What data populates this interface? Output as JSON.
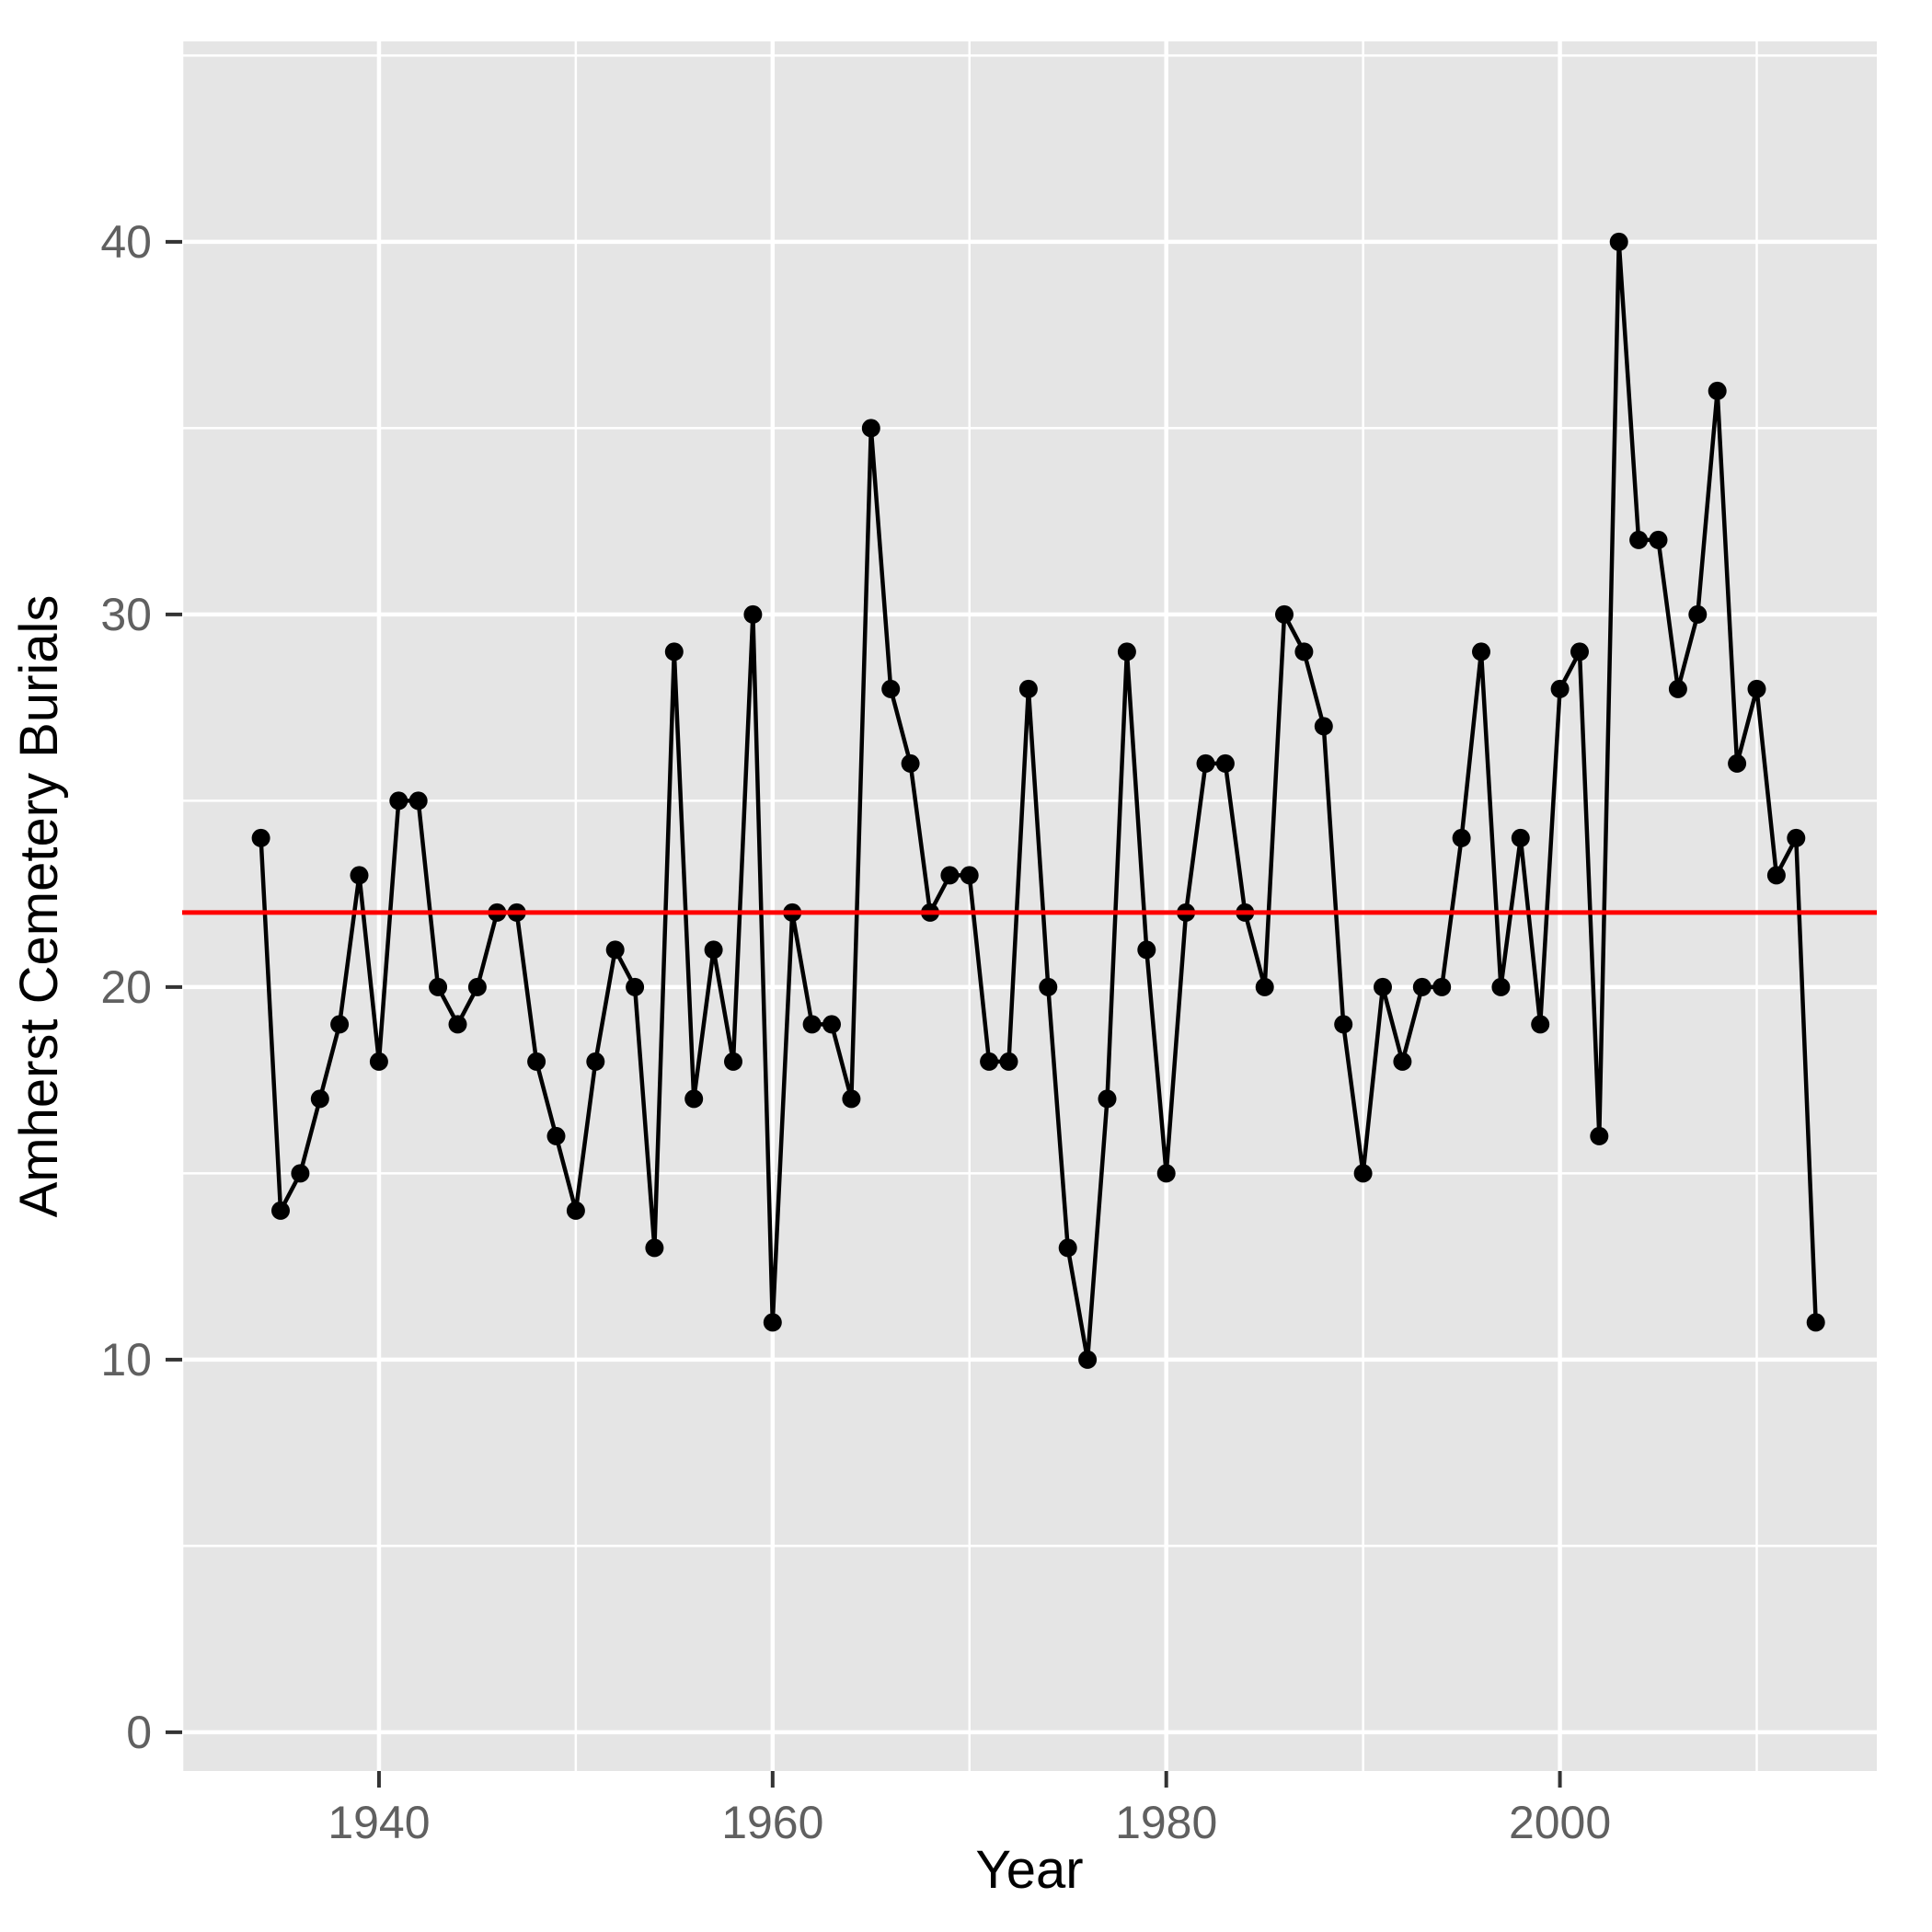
{
  "figure": {
    "kind": "ggplot-scatter-line",
    "background": "#ffffff"
  },
  "chart_data": {
    "type": "line",
    "series_name": "amherst-cemetery-burials",
    "x": [
      1934,
      1935,
      1936,
      1937,
      1938,
      1939,
      1940,
      1941,
      1942,
      1943,
      1944,
      1945,
      1946,
      1947,
      1948,
      1949,
      1950,
      1951,
      1952,
      1953,
      1954,
      1955,
      1956,
      1957,
      1958,
      1959,
      1960,
      1961,
      1962,
      1963,
      1964,
      1965,
      1966,
      1967,
      1968,
      1969,
      1970,
      1971,
      1972,
      1973,
      1974,
      1975,
      1976,
      1977,
      1978,
      1979,
      1980,
      1981,
      1982,
      1983,
      1984,
      1985,
      1986,
      1987,
      1988,
      1989,
      1990,
      1991,
      1992,
      1993,
      1994,
      1995,
      1996,
      1997,
      1998,
      1999,
      2000,
      2001,
      2002,
      2003,
      2004,
      2005,
      2006,
      2007,
      2008,
      2009,
      2010,
      2011,
      2012,
      2013
    ],
    "values": [
      24,
      14,
      15,
      17,
      19,
      23,
      18,
      25,
      25,
      20,
      19,
      20,
      22,
      22,
      18,
      16,
      14,
      18,
      21,
      20,
      13,
      29,
      17,
      21,
      18,
      30,
      11,
      22,
      19,
      19,
      17,
      35,
      28,
      26,
      22,
      23,
      23,
      18,
      18,
      28,
      20,
      13,
      10,
      17,
      29,
      21,
      15,
      22,
      26,
      26,
      22,
      20,
      30,
      29,
      27,
      19,
      15,
      20,
      18,
      20,
      20,
      24,
      29,
      20,
      24,
      19,
      28,
      29,
      16,
      40,
      32,
      32,
      28,
      30,
      36,
      26,
      28,
      23,
      24,
      11
    ],
    "title": "",
    "xlabel": "Year",
    "ylabel": "Amherst Cemetery Burials",
    "x_ticks": [
      1940,
      1960,
      1980,
      2000
    ],
    "x_minor_ticks": [
      1930,
      1950,
      1970,
      1990,
      2010
    ],
    "y_ticks": [
      0,
      10,
      20,
      30,
      40
    ],
    "y_minor_ticks": [
      5,
      15,
      25,
      35,
      45
    ],
    "x_domain": [
      1930.0,
      2016.1
    ],
    "y_domain": [
      -1.04,
      45.38
    ],
    "reference_line": {
      "value": 22,
      "color": "#ff0000"
    },
    "grid": true,
    "legend": "none",
    "styles": {
      "panel_bg": "#e5e5e5",
      "grid_major_color": "#ffffff",
      "grid_minor_color": "#ffffff",
      "line_color": "#000000",
      "point_color": "#000000",
      "tick_color": "#333333",
      "axis_text_color": "#606060",
      "axis_title_color": "#000000"
    }
  }
}
